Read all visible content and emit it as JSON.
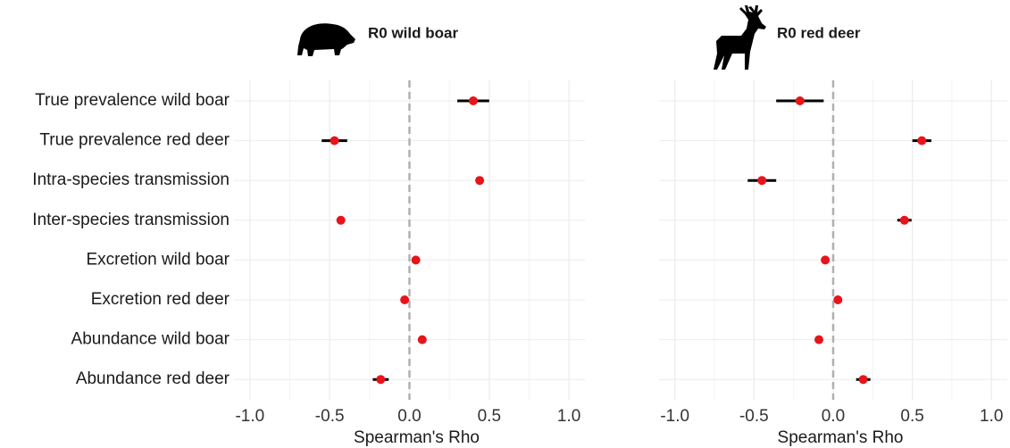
{
  "chart_data": [
    {
      "type": "dot-errorbar",
      "title": "R0 wild boar",
      "xlabel": "Spearman's Rho",
      "categories": [
        "True prevalence wild boar",
        "True prevalence red deer",
        "Intra-species transmission",
        "Inter-species transmission",
        "Excretion wild boar",
        "Excretion red deer",
        "Abundance wild boar",
        "Abundance red deer"
      ],
      "values": [
        0.4,
        -0.47,
        0.44,
        -0.43,
        0.04,
        -0.03,
        0.08,
        -0.18
      ],
      "errors": [
        0.1,
        0.08,
        0.01,
        0.01,
        0.01,
        0.01,
        0.01,
        0.05
      ],
      "color": "#e8141b",
      "zero_line": true,
      "grid": true,
      "xlim": [
        -1.1,
        1.1
      ],
      "xticks": [
        {
          "value": -1,
          "label": "-1.0"
        },
        {
          "value": -0.5,
          "label": "-0.5"
        },
        {
          "value": 0,
          "label": "0.0"
        },
        {
          "value": 0.5,
          "label": "0.5"
        },
        {
          "value": 1,
          "label": "1.0"
        }
      ]
    },
    {
      "type": "dot-errorbar",
      "title": "R0 red deer",
      "xlabel": "Spearman's Rho",
      "values": [
        -0.21,
        0.56,
        -0.45,
        0.45,
        -0.05,
        0.03,
        -0.09,
        0.19
      ],
      "errors": [
        0.15,
        0.06,
        0.09,
        0.045,
        0.01,
        0.01,
        0.01,
        0.045
      ],
      "color": "#e8141b",
      "zero_line": true,
      "grid": true,
      "xlim": [
        -1.1,
        1.1
      ],
      "xticks": [
        {
          "value": -1,
          "label": "-1.0"
        },
        {
          "value": -0.5,
          "label": "-0.5"
        },
        {
          "value": 0,
          "label": "0.0"
        },
        {
          "value": 0.5,
          "label": "0.5"
        },
        {
          "value": 1,
          "label": "1.0"
        }
      ]
    }
  ]
}
